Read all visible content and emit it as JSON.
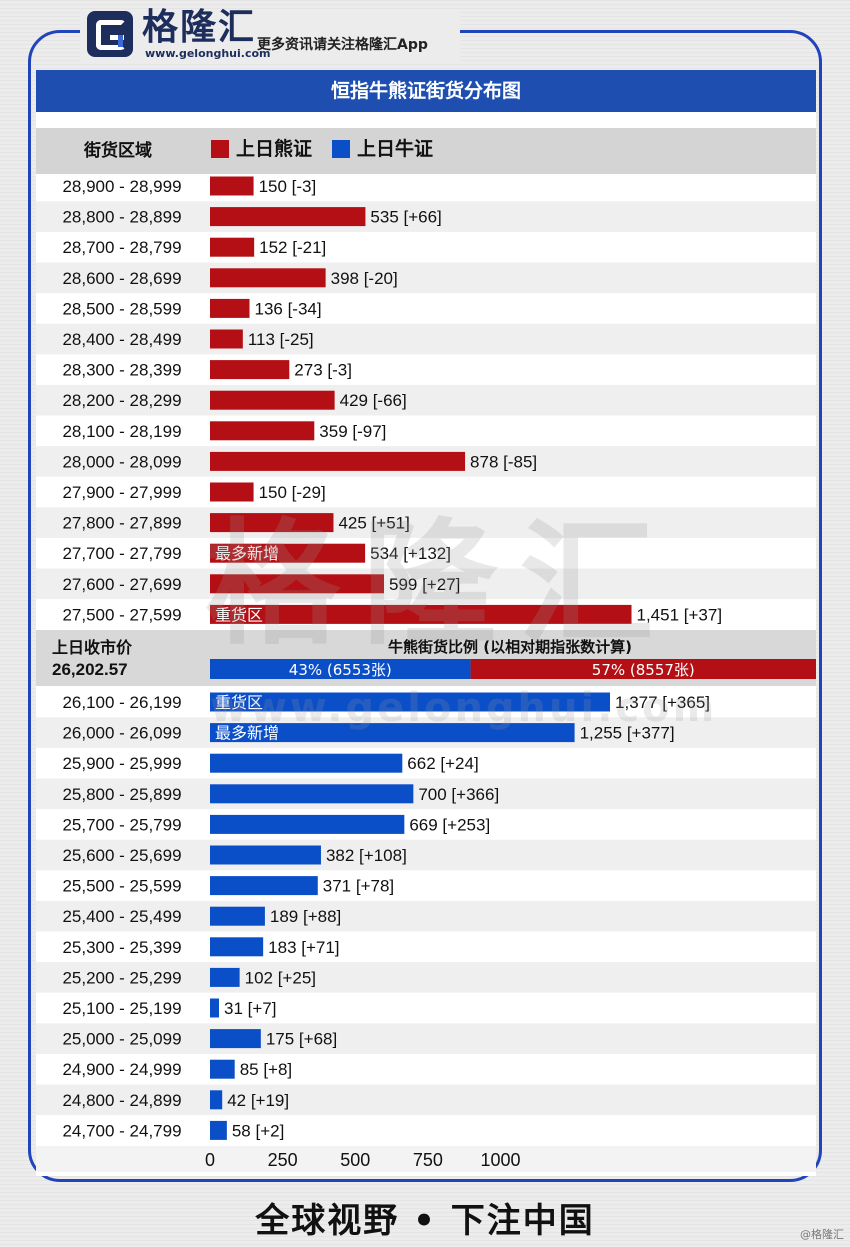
{
  "header": {
    "brand_name": "格隆汇",
    "brand_url": "www.gelonghui.com",
    "tagline": "更多资讯请关注格隆汇App"
  },
  "footer": {
    "slogan": "全球视野 • 下注中国",
    "credit": "@格隆汇"
  },
  "colors": {
    "bear": "#b30f14",
    "bull": "#0b4fc8",
    "title_bar": "#1e4fb0"
  },
  "chart_data": {
    "type": "bar",
    "orientation": "horizontal",
    "title": "恒指牛熊证街货分布图",
    "category_header": "街货区域",
    "legend": [
      {
        "label": "上日熊证",
        "color": "#b30f14"
      },
      {
        "label": "上日牛证",
        "color": "#0b4fc8"
      }
    ],
    "xlim": [
      0,
      1250
    ],
    "xticks": [
      0,
      250,
      500,
      750,
      1000
    ],
    "bear": {
      "name": "上日熊证",
      "categories": [
        "28,900 - 28,999",
        "28,800 - 28,899",
        "28,700 - 28,799",
        "28,600 - 28,699",
        "28,500 - 28,599",
        "28,400 - 28,499",
        "28,300 - 28,399",
        "28,200 - 28,299",
        "28,100 - 28,199",
        "28,000 - 28,099",
        "27,900 - 27,999",
        "27,800 - 27,899",
        "27,700 - 27,799",
        "27,600 - 27,699",
        "27,500 - 27,599"
      ],
      "values": [
        150,
        535,
        152,
        398,
        136,
        113,
        273,
        429,
        359,
        878,
        150,
        425,
        534,
        599,
        1451
      ],
      "labels": [
        "150 [-3]",
        "535 [+66]",
        "152 [-21]",
        "398 [-20]",
        "136 [-34]",
        "113 [-25]",
        "273 [-3]",
        "429 [-66]",
        "359 [-97]",
        "878 [-85]",
        "150 [-29]",
        "425 [+51]",
        "534 [+132]",
        "599 [+27]",
        "1,451 [+37]"
      ],
      "changes": [
        -3,
        66,
        -21,
        -20,
        -34,
        -25,
        -3,
        -66,
        -97,
        -85,
        -29,
        51,
        132,
        27,
        37
      ],
      "tags": [
        {
          "index": 12,
          "text": "最多新增"
        },
        {
          "index": 14,
          "text": "重货区"
        }
      ]
    },
    "prev_close": {
      "label": "上日收市价",
      "value": "26,202.57"
    },
    "ratio": {
      "title": "牛熊街货比例 (以相对期指张数计算)",
      "bull_label": "43% (6553张)",
      "bear_label": "57% (8557张)",
      "bull_pct": 43,
      "bear_pct": 57
    },
    "bull": {
      "name": "上日牛证",
      "categories": [
        "26,100 - 26,199",
        "26,000 - 26,099",
        "25,900 - 25,999",
        "25,800 - 25,899",
        "25,700 - 25,799",
        "25,600 - 25,699",
        "25,500 - 25,599",
        "25,400 - 25,499",
        "25,300 - 25,399",
        "25,200 - 25,299",
        "25,100 - 25,199",
        "25,000 - 25,099",
        "24,900 - 24,999",
        "24,800 - 24,899",
        "24,700 - 24,799"
      ],
      "values": [
        1377,
        1255,
        662,
        700,
        669,
        382,
        371,
        189,
        183,
        102,
        31,
        175,
        85,
        42,
        58
      ],
      "labels": [
        "1,377 [+365]",
        "1,255 [+377]",
        "662 [+24]",
        "700 [+366]",
        "669 [+253]",
        "382 [+108]",
        "371 [+78]",
        "189 [+88]",
        "183 [+71]",
        "102 [+25]",
        "31 [+7]",
        "175 [+68]",
        "85 [+8]",
        "42 [+19]",
        "58 [+2]"
      ],
      "changes": [
        365,
        377,
        24,
        366,
        253,
        108,
        78,
        88,
        71,
        25,
        7,
        68,
        8,
        19,
        2
      ],
      "tags": [
        {
          "index": 0,
          "text": "重货区"
        },
        {
          "index": 1,
          "text": "最多新增"
        }
      ]
    }
  }
}
